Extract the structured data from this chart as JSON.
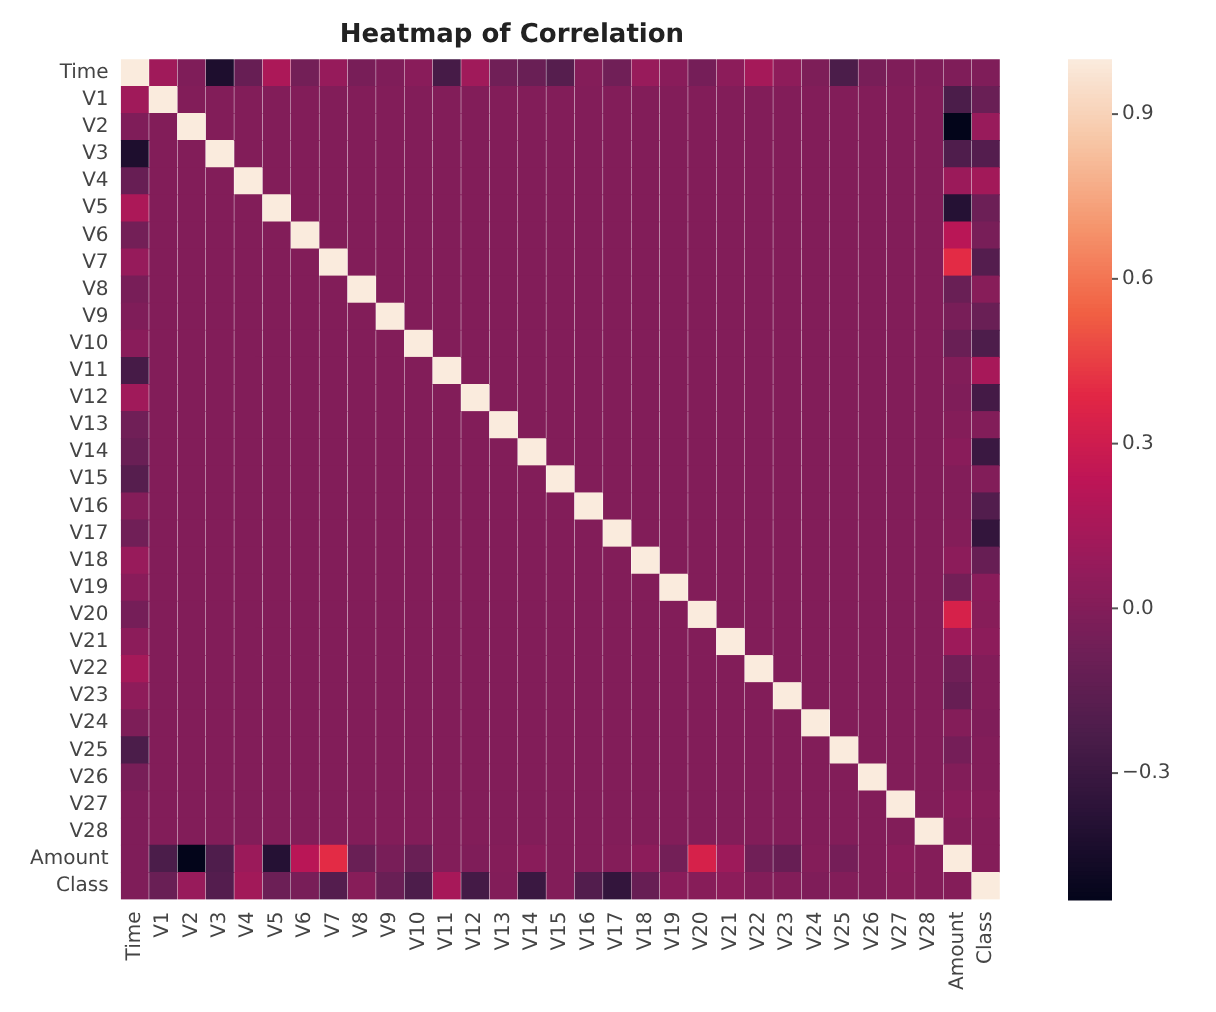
{
  "chart_data": {
    "type": "heatmap",
    "title": "Heatmap of Correlation",
    "categories": [
      "Time",
      "V1",
      "V2",
      "V3",
      "V4",
      "V5",
      "V6",
      "V7",
      "V8",
      "V9",
      "V10",
      "V11",
      "V12",
      "V13",
      "V14",
      "V15",
      "V16",
      "V17",
      "V18",
      "V19",
      "V20",
      "V21",
      "V22",
      "V23",
      "V24",
      "V25",
      "V26",
      "V27",
      "V28",
      "Amount",
      "Class"
    ],
    "y_categories": [
      "Time",
      "V1",
      "V2",
      "V3",
      "V4",
      "V5",
      "V6",
      "V7",
      "V8",
      "V9",
      "V10",
      "V11",
      "V12",
      "V13",
      "V14",
      "V15",
      "V16",
      "V17",
      "V18",
      "V19",
      "V20",
      "V21",
      "V22",
      "V23",
      "V24",
      "V25",
      "V26",
      "V27",
      "V28",
      "Amount",
      "Class"
    ],
    "clim": [
      -0.53,
      1
    ],
    "cticks": [
      0.9,
      0.6,
      0.3,
      {
        "value": 0,
        "label": "0.0"
      },
      {
        "value": -0.3,
        "label": "−0.3"
      }
    ],
    "cells": [
      [
        1,
        0.12,
        -0.01,
        -0.42,
        -0.11,
        0.17,
        -0.06,
        0.08,
        -0.04,
        -0.01,
        0.03,
        -0.25,
        0.12,
        -0.07,
        -0.1,
        -0.18,
        0.01,
        -0.07,
        0.09,
        0.03,
        -0.05,
        0.04,
        0.14,
        0.05,
        -0.02,
        -0.23,
        -0.04,
        -0.01,
        -0.01,
        -0.01,
        -0.01
      ],
      [
        0.12,
        1,
        0,
        0,
        0,
        0,
        0,
        0,
        0,
        0,
        0,
        0,
        0,
        0,
        0,
        0,
        0,
        0,
        0,
        0,
        0,
        0,
        0,
        0,
        0,
        0,
        0,
        0,
        0,
        -0.23,
        -0.1
      ],
      [
        -0.01,
        0,
        1,
        0,
        0,
        0,
        0,
        0,
        0,
        0,
        0,
        0,
        0,
        0,
        0,
        0,
        0,
        0,
        0,
        0,
        0,
        0,
        0,
        0,
        0,
        0,
        0,
        0,
        0,
        -0.53,
        0.09
      ],
      [
        -0.42,
        0,
        0,
        1,
        0,
        0,
        0,
        0,
        0,
        0,
        0,
        0,
        0,
        0,
        0,
        0,
        0,
        0,
        0,
        0,
        0,
        0,
        0,
        0,
        0,
        0,
        0,
        0,
        0,
        -0.21,
        -0.19
      ],
      [
        -0.11,
        0,
        0,
        0,
        1,
        0,
        0,
        0,
        0,
        0,
        0,
        0,
        0,
        0,
        0,
        0,
        0,
        0,
        0,
        0,
        0,
        0,
        0,
        0,
        0,
        0,
        0,
        0,
        0,
        0.1,
        0.13
      ],
      [
        0.17,
        0,
        0,
        0,
        0,
        1,
        0,
        0,
        0,
        0,
        0,
        0,
        0,
        0,
        0,
        0,
        0,
        0,
        0,
        0,
        0,
        0,
        0,
        0,
        0,
        0,
        0,
        0,
        0,
        -0.39,
        -0.09
      ],
      [
        -0.06,
        0,
        0,
        0,
        0,
        0,
        1,
        0,
        0,
        0,
        0,
        0,
        0,
        0,
        0,
        0,
        0,
        0,
        0,
        0,
        0,
        0,
        0,
        0,
        0,
        0,
        0,
        0,
        0,
        0.22,
        -0.04
      ],
      [
        0.08,
        0,
        0,
        0,
        0,
        0,
        0,
        1,
        0,
        0,
        0,
        0,
        0,
        0,
        0,
        0,
        0,
        0,
        0,
        0,
        0,
        0,
        0,
        0,
        0,
        0,
        0,
        0,
        0,
        0.4,
        -0.19
      ],
      [
        -0.04,
        0,
        0,
        0,
        0,
        0,
        0,
        0,
        1,
        0,
        0,
        0,
        0,
        0,
        0,
        0,
        0,
        0,
        0,
        0,
        0,
        0,
        0,
        0,
        0,
        0,
        0,
        0,
        0,
        -0.1,
        0.02
      ],
      [
        -0.01,
        0,
        0,
        0,
        0,
        0,
        0,
        0,
        0,
        1,
        0,
        0,
        0,
        0,
        0,
        0,
        0,
        0,
        0,
        0,
        0,
        0,
        0,
        0,
        0,
        0,
        0,
        0,
        0,
        -0.04,
        -0.1
      ],
      [
        0.03,
        0,
        0,
        0,
        0,
        0,
        0,
        0,
        0,
        0,
        1,
        0,
        0,
        0,
        0,
        0,
        0,
        0,
        0,
        0,
        0,
        0,
        0,
        0,
        0,
        0,
        0,
        0,
        0,
        -0.1,
        -0.22
      ],
      [
        -0.25,
        0,
        0,
        0,
        0,
        0,
        0,
        0,
        0,
        0,
        0,
        1,
        0,
        0,
        0,
        0,
        0,
        0,
        0,
        0,
        0,
        0,
        0,
        0,
        0,
        0,
        0,
        0,
        0,
        0,
        0.15
      ],
      [
        0.12,
        0,
        0,
        0,
        0,
        0,
        0,
        0,
        0,
        0,
        0,
        0,
        1,
        0,
        0,
        0,
        0,
        0,
        0,
        0,
        0,
        0,
        0,
        0,
        0,
        0,
        0,
        0,
        0,
        -0.01,
        -0.26
      ],
      [
        -0.07,
        0,
        0,
        0,
        0,
        0,
        0,
        0,
        0,
        0,
        0,
        0,
        0,
        1,
        0,
        0,
        0,
        0,
        0,
        0,
        0,
        0,
        0,
        0,
        0,
        0,
        0,
        0,
        0,
        0.01,
        0
      ],
      [
        -0.1,
        0,
        0,
        0,
        0,
        0,
        0,
        0,
        0,
        0,
        0,
        0,
        0,
        0,
        1,
        0,
        0,
        0,
        0,
        0,
        0,
        0,
        0,
        0,
        0,
        0,
        0,
        0,
        0,
        0.03,
        -0.3
      ],
      [
        -0.18,
        0,
        0,
        0,
        0,
        0,
        0,
        0,
        0,
        0,
        0,
        0,
        0,
        0,
        0,
        1,
        0,
        0,
        0,
        0,
        0,
        0,
        0,
        0,
        0,
        0,
        0,
        0,
        0,
        0,
        0
      ],
      [
        0.01,
        0,
        0,
        0,
        0,
        0,
        0,
        0,
        0,
        0,
        0,
        0,
        0,
        0,
        0,
        0,
        1,
        0,
        0,
        0,
        0,
        0,
        0,
        0,
        0,
        0,
        0,
        0,
        0,
        0,
        -0.2
      ],
      [
        -0.07,
        0,
        0,
        0,
        0,
        0,
        0,
        0,
        0,
        0,
        0,
        0,
        0,
        0,
        0,
        0,
        0,
        1,
        0,
        0,
        0,
        0,
        0,
        0,
        0,
        0,
        0,
        0,
        0,
        0.01,
        -0.33
      ],
      [
        0.09,
        0,
        0,
        0,
        0,
        0,
        0,
        0,
        0,
        0,
        0,
        0,
        0,
        0,
        0,
        0,
        0,
        0,
        1,
        0,
        0,
        0,
        0,
        0,
        0,
        0,
        0,
        0,
        0,
        0.04,
        -0.11
      ],
      [
        0.03,
        0,
        0,
        0,
        0,
        0,
        0,
        0,
        0,
        0,
        0,
        0,
        0,
        0,
        0,
        0,
        0,
        0,
        0,
        1,
        0,
        0,
        0,
        0,
        0,
        0,
        0,
        0,
        0,
        -0.06,
        0.03
      ],
      [
        -0.05,
        0,
        0,
        0,
        0,
        0,
        0,
        0,
        0,
        0,
        0,
        0,
        0,
        0,
        0,
        0,
        0,
        0,
        0,
        0,
        1,
        0,
        0,
        0,
        0,
        0,
        0,
        0,
        0,
        0.34,
        0.02
      ],
      [
        0.04,
        0,
        0,
        0,
        0,
        0,
        0,
        0,
        0,
        0,
        0,
        0,
        0,
        0,
        0,
        0,
        0,
        0,
        0,
        0,
        0,
        1,
        0,
        0,
        0,
        0,
        0,
        0,
        0,
        0.11,
        0.04
      ],
      [
        0.14,
        0,
        0,
        0,
        0,
        0,
        0,
        0,
        0,
        0,
        0,
        0,
        0,
        0,
        0,
        0,
        0,
        0,
        0,
        0,
        0,
        0,
        1,
        0,
        0,
        0,
        0,
        0,
        0,
        -0.07,
        0
      ],
      [
        0.05,
        0,
        0,
        0,
        0,
        0,
        0,
        0,
        0,
        0,
        0,
        0,
        0,
        0,
        0,
        0,
        0,
        0,
        0,
        0,
        0,
        0,
        0,
        1,
        0,
        0,
        0,
        0,
        0,
        -0.11,
        0
      ],
      [
        -0.02,
        0,
        0,
        0,
        0,
        0,
        0,
        0,
        0,
        0,
        0,
        0,
        0,
        0,
        0,
        0,
        0,
        0,
        0,
        0,
        0,
        0,
        0,
        0,
        1,
        0,
        0,
        0,
        0,
        0.01,
        -0.01
      ],
      [
        -0.23,
        0,
        0,
        0,
        0,
        0,
        0,
        0,
        0,
        0,
        0,
        0,
        0,
        0,
        0,
        0,
        0,
        0,
        0,
        0,
        0,
        0,
        0,
        0,
        0,
        1,
        0,
        0,
        0,
        -0.05,
        0
      ],
      [
        -0.04,
        0,
        0,
        0,
        0,
        0,
        0,
        0,
        0,
        0,
        0,
        0,
        0,
        0,
        0,
        0,
        0,
        0,
        0,
        0,
        0,
        0,
        0,
        0,
        0,
        0,
        1,
        0,
        0,
        0,
        0
      ],
      [
        -0.01,
        0,
        0,
        0,
        0,
        0,
        0,
        0,
        0,
        0,
        0,
        0,
        0,
        0,
        0,
        0,
        0,
        0,
        0,
        0,
        0,
        0,
        0,
        0,
        0,
        0,
        0,
        1,
        0,
        0.03,
        0.02
      ],
      [
        -0.01,
        0,
        0,
        0,
        0,
        0,
        0,
        0,
        0,
        0,
        0,
        0,
        0,
        0,
        0,
        0,
        0,
        0,
        0,
        0,
        0,
        0,
        0,
        0,
        0,
        0,
        0,
        0,
        1,
        0.01,
        0.01
      ],
      [
        -0.01,
        -0.23,
        -0.53,
        -0.21,
        0.1,
        -0.39,
        0.22,
        0.4,
        -0.1,
        -0.04,
        -0.1,
        0,
        -0.01,
        0.01,
        0.03,
        0,
        0,
        0.01,
        0.04,
        -0.06,
        0.34,
        0.11,
        -0.07,
        -0.11,
        0.01,
        -0.05,
        0,
        0.03,
        0.01,
        1,
        0.01
      ],
      [
        -0.01,
        -0.1,
        0.09,
        -0.19,
        0.13,
        -0.09,
        -0.04,
        -0.19,
        0.02,
        -0.1,
        -0.22,
        0.15,
        -0.26,
        0,
        -0.3,
        0,
        -0.2,
        -0.33,
        -0.11,
        0.03,
        0.02,
        0.04,
        0,
        0,
        -0.01,
        0,
        0,
        0.02,
        0.01,
        0.01,
        1
      ]
    ]
  }
}
